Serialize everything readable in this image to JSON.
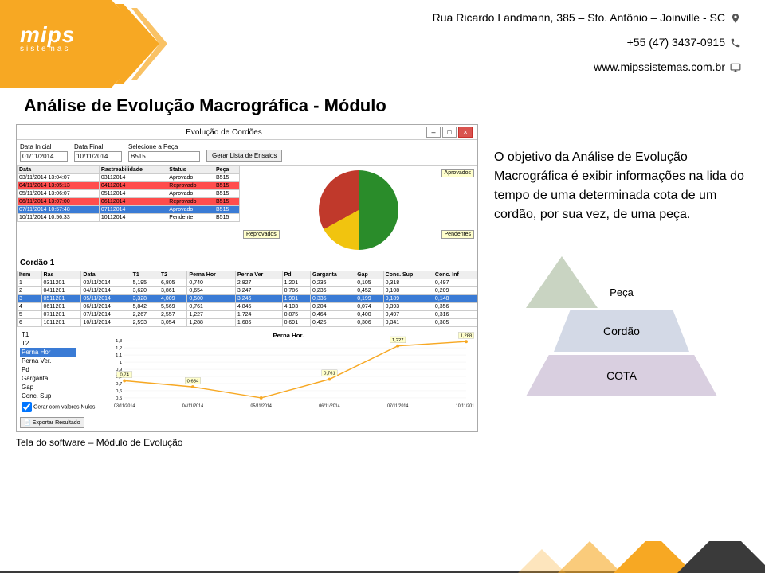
{
  "colors": {
    "orange": "#f7a823",
    "dark": "#3a3a3a",
    "green_pie": "#2a8c2a",
    "red_pie": "#c0392b",
    "yellow_pie": "#f1c40f",
    "blue_row": "#3a7bd5",
    "red_row": "#ff4d4d",
    "pyr_top": "#c9d4c2",
    "pyr_mid": "#d3d9e6",
    "pyr_bot": "#d9cfe0",
    "line_orange": "#f7a823"
  },
  "header": {
    "address": "Rua Ricardo Landmann, 385 – Sto. Antônio – Joinville - SC",
    "phone": "+55 (47) 3437-0915",
    "website": "www.mipssistemas.com.br",
    "logo_main": "mips",
    "logo_sub": "sistemas"
  },
  "title": "Análise de Evolução Macrográfica - Módulo",
  "window": {
    "title": "Evolução de Cordões",
    "filters": {
      "data_inicial_label": "Data Inicial",
      "data_inicial": "01/11/2014",
      "data_final_label": "Data Final",
      "data_final": "10/11/2014",
      "selecione_label": "Selecione a Peça",
      "selecione_value": "B515",
      "gerar_btn": "Gerar Lista de Ensaios"
    },
    "grid1": {
      "headers": [
        "Data",
        "Rastreabilidade",
        "Status",
        "Peça"
      ],
      "rows": [
        {
          "cells": [
            "03/11/2014 13:04:07",
            "03112014",
            "Aprovado",
            "B515"
          ],
          "style": ""
        },
        {
          "cells": [
            "04/11/2014 13:05:13",
            "04112014",
            "Reprovado",
            "B515"
          ],
          "style": "row-red"
        },
        {
          "cells": [
            "05/11/2014 13:06:07",
            "05112014",
            "Aprovado",
            "B515"
          ],
          "style": ""
        },
        {
          "cells": [
            "06/11/2014 13:07:00",
            "06112014",
            "Reprovado",
            "B515"
          ],
          "style": "row-red"
        },
        {
          "cells": [
            "07/11/2014 10:57:48",
            "07112014",
            "Aprovado",
            "B515"
          ],
          "style": "row-sel"
        },
        {
          "cells": [
            "10/11/2014 10:56:33",
            "10112014",
            "Pendente",
            "B515"
          ],
          "style": ""
        }
      ]
    },
    "pie": {
      "legend_aprovados": "Aprovados",
      "legend_reprovados": "Reprovados",
      "legend_pendentes": "Pendentes",
      "green_pct": 50,
      "red_pct": 33,
      "yellow_pct": 17
    },
    "cordao_label": "Cordão 1",
    "grid2": {
      "headers": [
        "Item",
        "Ras",
        "Data",
        "T1",
        "T2",
        "Perna Hor",
        "Perna Ver",
        "Pd",
        "Garganta",
        "Gap",
        "Conc. Sup",
        "Conc. Inf"
      ],
      "rows": [
        {
          "cells": [
            "1",
            "0311201",
            "03/11/2014",
            "5,195",
            "6,805",
            "0,740",
            "2,827",
            "1,201",
            "0,236",
            "0,105",
            "0,318",
            "0,497"
          ],
          "style": ""
        },
        {
          "cells": [
            "2",
            "0411201",
            "04/11/2014",
            "3,620",
            "3,861",
            "0,654",
            "3,247",
            "0,786",
            "0,236",
            "0,452",
            "0,108",
            "0,209"
          ],
          "style": ""
        },
        {
          "cells": [
            "3",
            "0511201",
            "05/11/2014",
            "3,328",
            "4,009",
            "0,500",
            "3,246",
            "1,981",
            "0,335",
            "0,199",
            "0,189",
            "0,148"
          ],
          "style": "row-hl"
        },
        {
          "cells": [
            "4",
            "0611201",
            "06/11/2014",
            "5,842",
            "5,569",
            "0,761",
            "4,845",
            "4,103",
            "0,204",
            "0,074",
            "0,393",
            "0,356"
          ],
          "style": ""
        },
        {
          "cells": [
            "5",
            "0711201",
            "07/11/2014",
            "2,267",
            "2,557",
            "1,227",
            "1,724",
            "0,875",
            "0,464",
            "0,400",
            "0,497",
            "0,316"
          ],
          "style": ""
        },
        {
          "cells": [
            "6",
            "1011201",
            "10/11/2014",
            "2,593",
            "3,054",
            "1,288",
            "1,686",
            "0,691",
            "0,426",
            "0,306",
            "0,341",
            "0,305"
          ],
          "style": ""
        }
      ]
    },
    "params": [
      "T1",
      "T2",
      "Perna Hor",
      "Perna Ver.",
      "Pd",
      "Garganta",
      "Gap",
      "Conc. Sup"
    ],
    "param_selected_index": 2,
    "checkbox_label": "Gerar com valores Nulos.",
    "export_btn": "Exportar Resultado",
    "linechart": {
      "title": "Perna Hor.",
      "x_labels": [
        "03/11/2014",
        "04/11/2014",
        "05/11/2014",
        "06/11/2014",
        "07/11/2014",
        "10/11/2014"
      ],
      "y_ticks": [
        "0,5",
        "0,6",
        "0,7",
        "0,8",
        "0,9",
        "1",
        "1,1",
        "1,2",
        "1,3"
      ],
      "values": [
        0.74,
        0.654,
        0.5,
        0.761,
        1.227,
        1.288
      ],
      "value_labels": [
        "0,74",
        "0,654",
        "",
        "0,761",
        "1,227",
        "1,288"
      ],
      "y_min": 0.5,
      "y_max": 1.3
    }
  },
  "caption": "Tela do software – Módulo de Evolução",
  "description": "O objetivo da Análise de Evolução Macrográfica é exibir informações na lida do tempo de uma determinada cota de um cordão, por sua vez, de uma peça.",
  "pyramid": {
    "top": "Peça",
    "mid": "Cordão",
    "bot": "COTA"
  }
}
